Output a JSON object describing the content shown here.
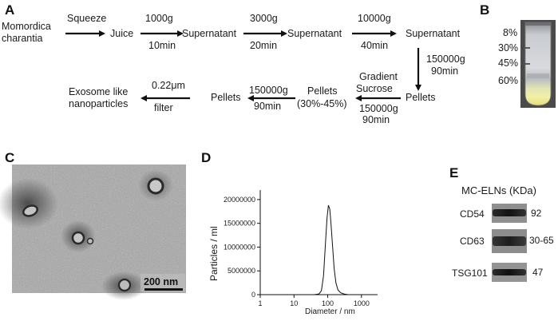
{
  "panels": {
    "A": "A",
    "B": "B",
    "C": "C",
    "D": "D",
    "E": "E"
  },
  "flow": {
    "start_line1": "Momordica",
    "start_line2": "charantia",
    "squeeze": "Squeeze",
    "juice": "Juice",
    "step1_speed": "1000g",
    "step1_time": "10min",
    "supernatant1": "Supernatant",
    "step2_speed": "3000g",
    "step2_time": "20min",
    "supernatant2": "Supernatant",
    "step3_speed": "10000g",
    "step3_time": "40min",
    "supernatant3": "Supernatant",
    "step4_speed": "150000g",
    "step4_time": "90min",
    "pellets1": "Pellets",
    "gradient_line1": "Gradient",
    "gradient_line2": "Sucrose",
    "step5_speed": "150000g",
    "step5_time": "90min",
    "pellets2_line1": "Pellets",
    "pellets2_line2": "(30%-45%)",
    "step6_speed": "150000g",
    "step6_time": "90min",
    "pellets3": "Pellets",
    "filter_size": "0.22μm",
    "filter_label": "filter",
    "end_line1": "Exosome like",
    "end_line2": "nanoparticles"
  },
  "tube": {
    "labels": [
      "8%",
      "30%",
      "45%",
      "60%"
    ]
  },
  "tem": {
    "scale_bar": "200 nm"
  },
  "chart_data": {
    "type": "line",
    "xlabel": "Diameter / nm",
    "ylabel": "Particles / ml",
    "x_scale": "log",
    "xlim": [
      1,
      3000
    ],
    "ylim": [
      0,
      22000000
    ],
    "x_ticks": [
      1,
      10,
      100,
      1000
    ],
    "x_tick_labels": [
      "1",
      "10",
      "100",
      "1000"
    ],
    "y_ticks": [
      0,
      5000000,
      10000000,
      15000000,
      20000000
    ],
    "y_tick_labels": [
      "0",
      "5000000",
      "10000000",
      "15000000",
      "20000000"
    ],
    "x": [
      40,
      55,
      65,
      75,
      85,
      95,
      105,
      115,
      125,
      140,
      155,
      175,
      200,
      240,
      300,
      400
    ],
    "y": [
      0,
      150000,
      800000,
      4000000,
      10500000,
      16000000,
      18800000,
      18000000,
      15000000,
      10000000,
      5500000,
      2500000,
      1000000,
      400000,
      150000,
      0
    ]
  },
  "western": {
    "title": "MC-ELNs (KDa)",
    "rows": [
      {
        "protein": "CD54",
        "kda": "92"
      },
      {
        "protein": "CD63",
        "kda": "30-65"
      },
      {
        "protein": "TSG101",
        "kda": "47"
      }
    ]
  }
}
